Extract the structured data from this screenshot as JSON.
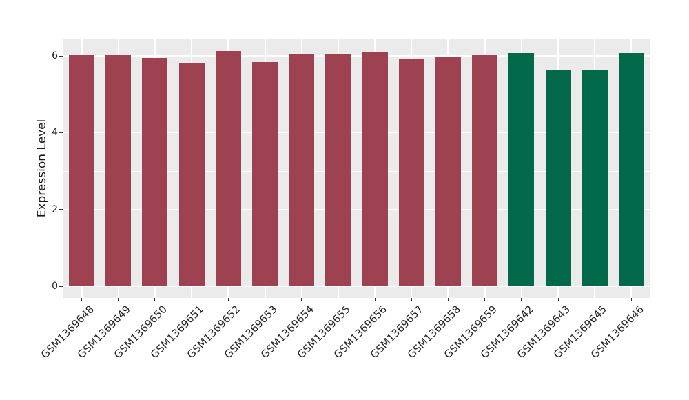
{
  "figure": {
    "background": "#ffffff",
    "panel_background": "#ebebeb",
    "gridline_color": "#ffffff",
    "tick_color": "#333333",
    "tick_label_color": "#262626",
    "axis_title_color": "#1a1a1a"
  },
  "chart_data": {
    "type": "bar",
    "title": "",
    "xlabel": "",
    "ylabel": "Expression Level",
    "categories": [
      "GSM1369648",
      "GSM1369649",
      "GSM1369650",
      "GSM1369651",
      "GSM1369652",
      "GSM1369653",
      "GSM1369654",
      "GSM1369655",
      "GSM1369656",
      "GSM1369657",
      "GSM1369658",
      "GSM1369659",
      "GSM1369642",
      "GSM1369643",
      "GSM1369645",
      "GSM1369646"
    ],
    "values": [
      6.02,
      6.02,
      5.95,
      5.82,
      6.13,
      5.84,
      6.05,
      6.05,
      6.09,
      5.93,
      5.99,
      6.02,
      6.07,
      5.64,
      5.62,
      6.07
    ],
    "bar_colors": [
      "#9e4252",
      "#9e4252",
      "#9e4252",
      "#9e4252",
      "#9e4252",
      "#9e4252",
      "#9e4252",
      "#9e4252",
      "#9e4252",
      "#9e4252",
      "#9e4252",
      "#9e4252",
      "#016849",
      "#016849",
      "#016849",
      "#016849"
    ],
    "group_colors": {
      "group_1": "#9e4252",
      "group_2": "#016849"
    },
    "ylim": [
      -0.3,
      6.45
    ],
    "yticks": [
      0,
      2,
      4,
      6
    ],
    "yticks_minor": [
      1,
      3,
      5
    ],
    "grid": "on",
    "legend": "none"
  }
}
